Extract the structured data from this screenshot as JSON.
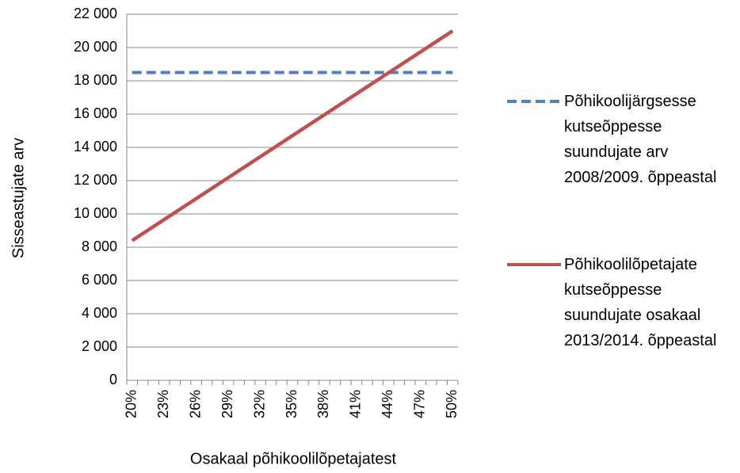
{
  "chart_data": {
    "type": "line",
    "ylabel": "Sisseastujate arv",
    "xlabel": "Osakaal põhikoolilõpetajatest",
    "categories": [
      "20%",
      null,
      null,
      "23%",
      null,
      null,
      "26%",
      null,
      null,
      "29%",
      null,
      null,
      "32%",
      null,
      null,
      "35%",
      null,
      null,
      "38%",
      null,
      null,
      "41%",
      null,
      null,
      "44%",
      null,
      null,
      "47%",
      null,
      null,
      "50%"
    ],
    "series": [
      {
        "name": "Põhikoolijärgsesse kutseõppesse suundujate arv 2008/2009. õppeastal",
        "color": "#4f81bd",
        "dashed": true,
        "values": [
          18500,
          18500,
          18500,
          18500,
          18500,
          18500,
          18500,
          18500,
          18500,
          18500,
          18500,
          18500,
          18500,
          18500,
          18500,
          18500,
          18500,
          18500,
          18500,
          18500,
          18500,
          18500,
          18500,
          18500,
          18500,
          18500,
          18500,
          18500,
          18500,
          18500,
          18500
        ]
      },
      {
        "name": "Põhikoolilõpetajate kutseõppesse suundujate osakaal 2013/2014. õppeastal",
        "color": "#c0504d",
        "dashed": false,
        "values": [
          8400,
          8820,
          9240,
          9660,
          10080,
          10500,
          10920,
          11340,
          11760,
          12180,
          12600,
          13020,
          13440,
          13860,
          14280,
          14700,
          15120,
          15540,
          15960,
          16380,
          16800,
          17220,
          17640,
          18060,
          18480,
          18900,
          19320,
          19740,
          20160,
          20580,
          21000
        ]
      }
    ],
    "ylim": [
      0,
      22000
    ],
    "yticks": [
      0,
      {
        "value": 2000,
        "label": "2 000"
      },
      {
        "value": 4000,
        "label": "4 000"
      },
      {
        "value": 6000,
        "label": "6 000"
      },
      {
        "value": 8000,
        "label": "8 000"
      },
      {
        "value": 10000,
        "label": "10 000"
      },
      {
        "value": 12000,
        "label": "12 000"
      },
      {
        "value": 14000,
        "label": "14 000"
      },
      {
        "value": 16000,
        "label": "16 000"
      },
      {
        "value": 18000,
        "label": "18 000"
      },
      {
        "value": 20000,
        "label": "20 000"
      },
      {
        "value": 22000,
        "label": "22 000"
      }
    ],
    "grid": true,
    "legend": "right"
  }
}
